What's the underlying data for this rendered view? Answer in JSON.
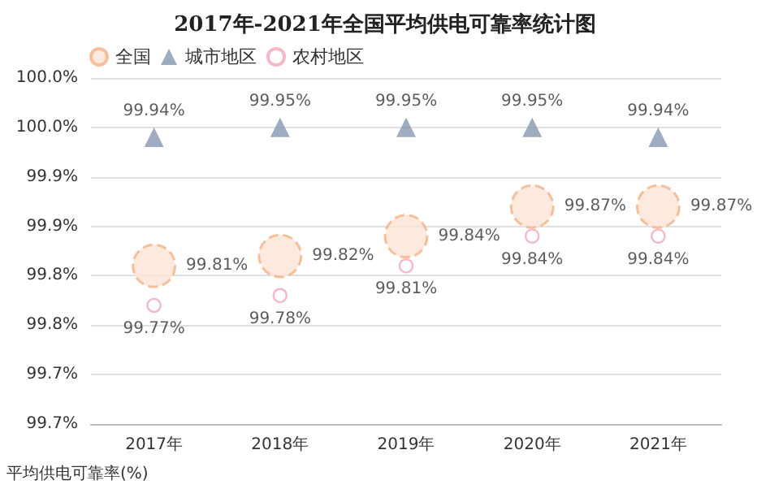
{
  "chart_data": {
    "type": "scatter",
    "title": "2017年-2021年全国平均供电可靠率统计图",
    "ylabel": "平均供电可靠率(%)",
    "categories": [
      "2017年",
      "2018年",
      "2019年",
      "2020年",
      "2021年"
    ],
    "series": [
      {
        "name": "全国",
        "color": "#f4b183",
        "marker": "circle",
        "values": [
          99.81,
          99.82,
          99.84,
          99.87,
          99.87
        ],
        "value_labels": [
          "99.81%",
          "99.82%",
          "99.84%",
          "99.87%",
          "99.87%"
        ]
      },
      {
        "name": "城市地区",
        "color": "#8497b0",
        "marker": "triangle",
        "values": [
          99.94,
          99.95,
          99.95,
          99.95,
          99.94
        ],
        "value_labels": [
          "99.94%",
          "99.95%",
          "99.95%",
          "99.95%",
          "99.94%"
        ]
      },
      {
        "name": "农村地区",
        "color": "#f4a6b8",
        "marker": "circle",
        "values": [
          99.77,
          99.78,
          99.81,
          99.84,
          99.84
        ],
        "value_labels": [
          "99.77%",
          "99.78%",
          "99.81%",
          "99.84%",
          "99.84%"
        ]
      }
    ],
    "ylim": [
      99.65,
      100.0
    ],
    "yticks": [
      {
        "value": 99.65,
        "label": "99.7%"
      },
      {
        "value": 99.7,
        "label": "99.7%"
      },
      {
        "value": 99.75,
        "label": "99.8%"
      },
      {
        "value": 99.8,
        "label": "99.8%"
      },
      {
        "value": 99.85,
        "label": "99.9%"
      },
      {
        "value": 99.9,
        "label": "99.9%"
      },
      {
        "value": 99.95,
        "label": "100.0%"
      },
      {
        "value": 100.0,
        "label": "100.0%"
      }
    ],
    "grid": "y",
    "legend": "top left"
  }
}
